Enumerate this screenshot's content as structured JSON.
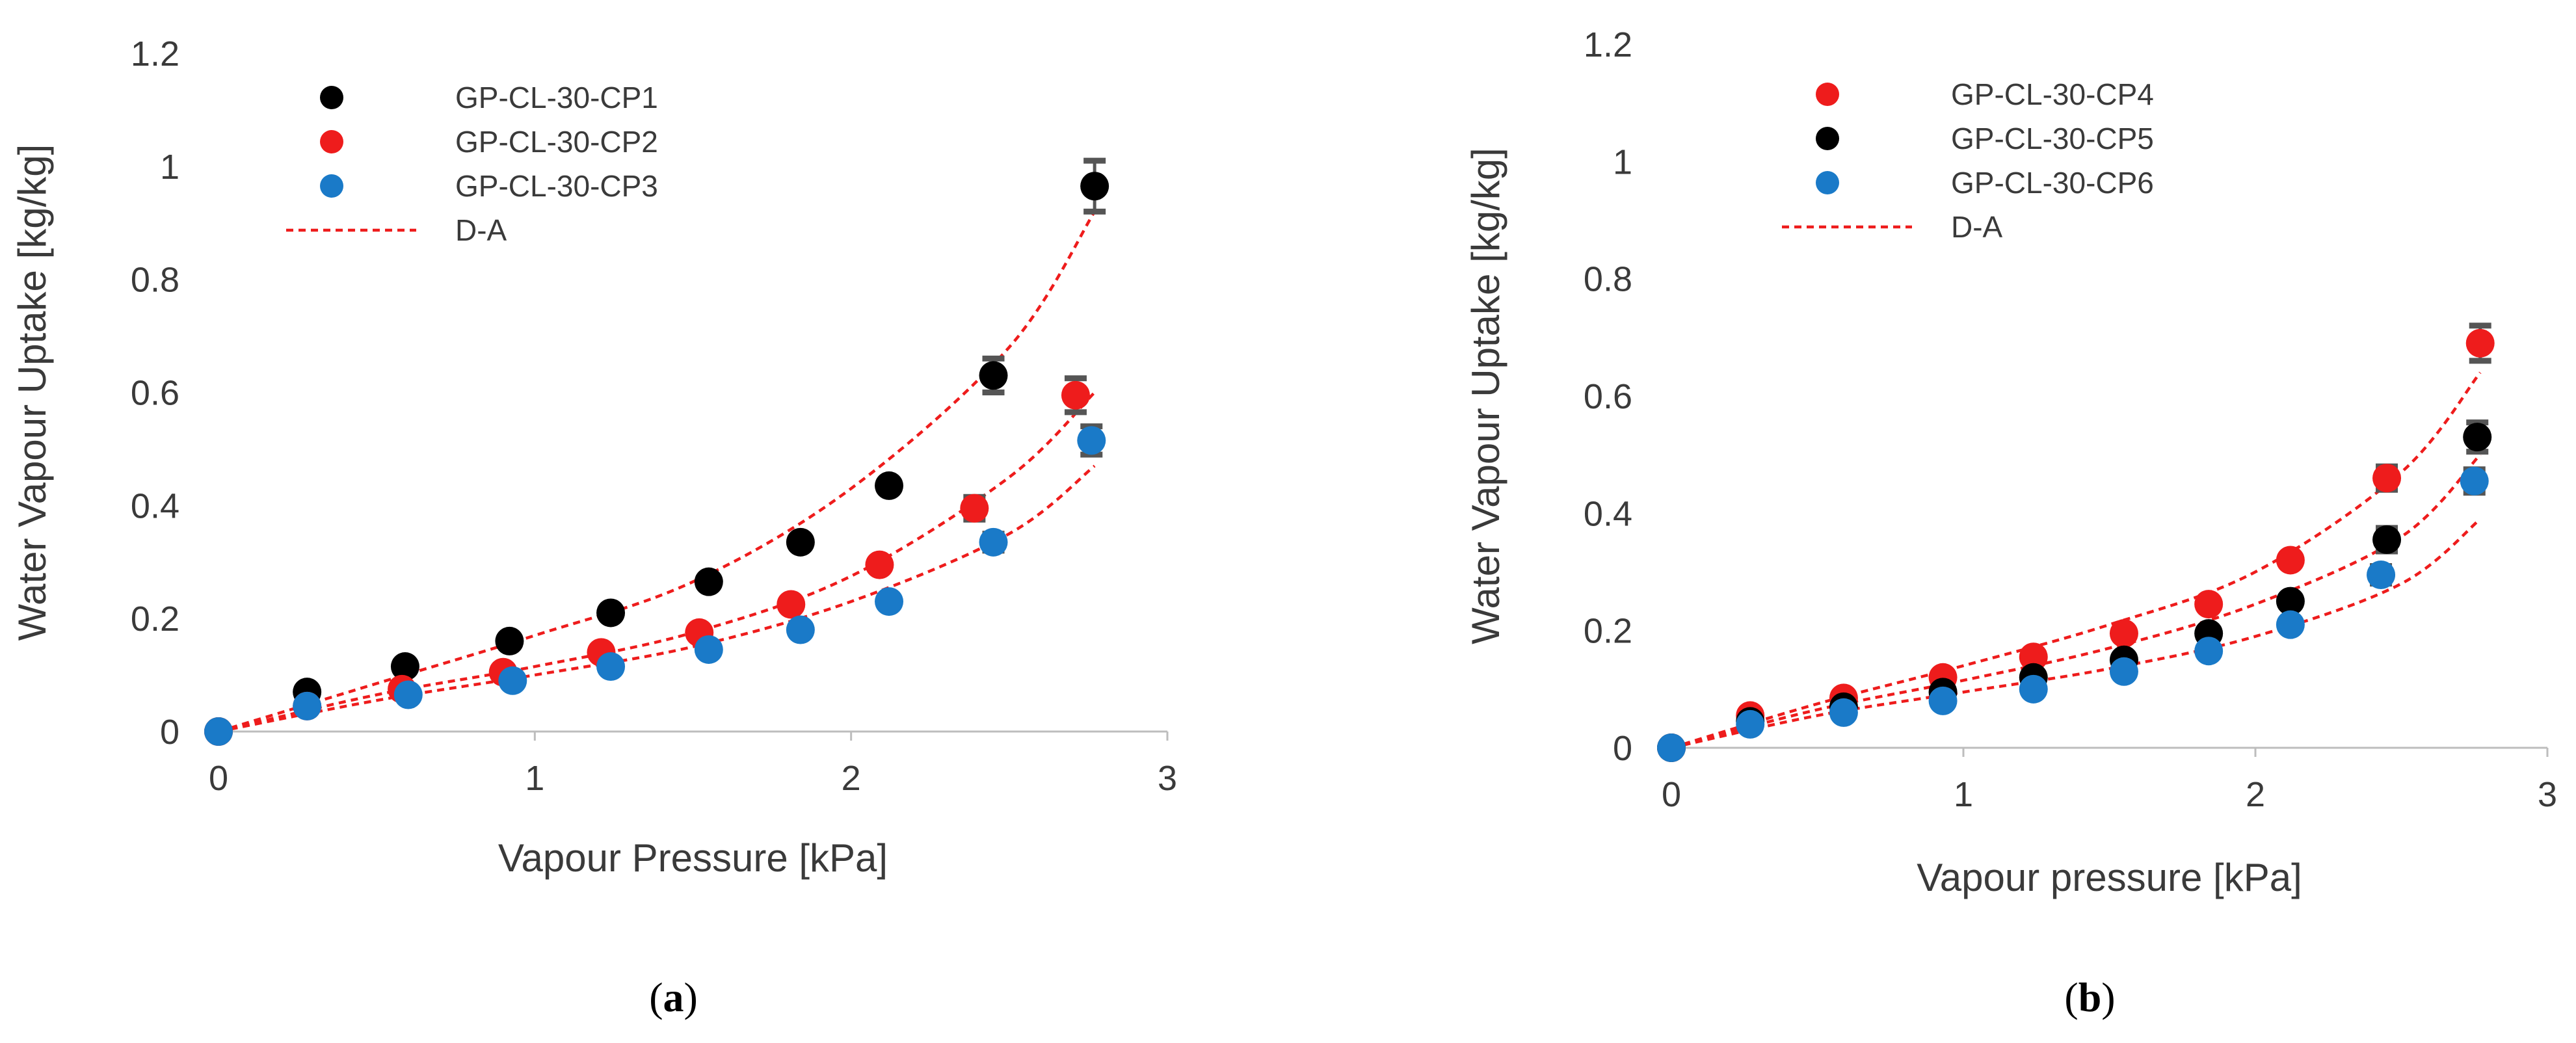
{
  "chart_data": [
    {
      "type": "scatter",
      "panel_label": "a",
      "caption_open": "(",
      "caption_close": ")",
      "xlabel": "Vapour Pressure [kPa]",
      "ylabel": "Water Vapour Uptake [kg/kg]",
      "xlim": [
        0,
        3
      ],
      "ylim": [
        0,
        1.2
      ],
      "xticks": [
        0,
        1,
        2,
        3
      ],
      "xtick_labels": [
        "0",
        "1",
        "2",
        "3"
      ],
      "yticks": [
        0,
        0.2,
        0.4,
        0.6,
        0.8,
        1.0,
        1.2
      ],
      "ytick_labels": [
        "0",
        "0.2",
        "0.4",
        "0.6",
        "0.8",
        "1",
        "1.2"
      ],
      "legend_position": "top-left",
      "series": [
        {
          "name": "GP-CL-30-CP1",
          "color": "#000000",
          "kind": "points",
          "x": [
            0,
            0.28,
            0.59,
            0.92,
            1.24,
            1.55,
            1.84,
            2.12,
            2.45,
            2.77
          ],
          "y": [
            0,
            0.07,
            0.115,
            0.16,
            0.21,
            0.265,
            0.335,
            0.435,
            0.63,
            0.965
          ],
          "err": [
            0,
            0,
            0,
            0,
            0,
            0,
            0,
            0,
            0.03,
            0.045
          ]
        },
        {
          "name": "GP-CL-30-CP2",
          "color": "#ee1c1c",
          "kind": "points",
          "x": [
            0,
            0.28,
            0.58,
            0.9,
            1.21,
            1.52,
            1.81,
            2.09,
            2.39,
            2.71
          ],
          "y": [
            0,
            0.045,
            0.075,
            0.105,
            0.14,
            0.175,
            0.225,
            0.295,
            0.395,
            0.595
          ],
          "err": [
            0,
            0,
            0,
            0,
            0,
            0,
            0,
            0,
            0.02,
            0.03
          ]
        },
        {
          "name": "GP-CL-30-CP3",
          "color": "#1a7ac8",
          "kind": "points",
          "x": [
            0,
            0.28,
            0.6,
            0.93,
            1.24,
            1.55,
            1.84,
            2.12,
            2.45,
            2.76
          ],
          "y": [
            0,
            0.045,
            0.065,
            0.09,
            0.115,
            0.145,
            0.18,
            0.23,
            0.335,
            0.515
          ],
          "err": [
            0,
            0,
            0,
            0,
            0,
            0,
            0,
            0,
            0.015,
            0.025
          ]
        }
      ],
      "fits": {
        "name": "D-A",
        "color": "#ee1c1c",
        "curves": [
          {
            "x": [
              0,
              0.5,
              1.0,
              1.5,
              2.0,
              2.5,
              2.77
            ],
            "y": [
              0,
              0.085,
              0.17,
              0.265,
              0.43,
              0.68,
              0.92
            ]
          },
          {
            "x": [
              0,
              0.5,
              1.0,
              1.5,
              2.0,
              2.5,
              2.77
            ],
            "y": [
              0,
              0.065,
              0.115,
              0.175,
              0.275,
              0.45,
              0.6
            ]
          },
          {
            "x": [
              0,
              0.5,
              1.0,
              1.5,
              2.0,
              2.5,
              2.77
            ],
            "y": [
              0,
              0.055,
              0.1,
              0.15,
              0.23,
              0.35,
              0.47
            ]
          }
        ]
      }
    },
    {
      "type": "scatter",
      "panel_label": "b",
      "caption_open": "(",
      "caption_close": ")",
      "xlabel": "Vapour pressure [kPa]",
      "ylabel": "Water Vapour Uptake [kg/kg]",
      "xlim": [
        0,
        3
      ],
      "ylim": [
        0,
        1.2
      ],
      "xticks": [
        0,
        1,
        2,
        3
      ],
      "xtick_labels": [
        "0",
        "1",
        "2",
        "3"
      ],
      "yticks": [
        0,
        0.2,
        0.4,
        0.6,
        0.8,
        1.0,
        1.2
      ],
      "ytick_labels": [
        "0",
        "0.2",
        "0.4",
        "0.6",
        "0.8",
        "1",
        "1.2"
      ],
      "legend_position": "top-left",
      "series": [
        {
          "name": "GP-CL-30-CP4",
          "color": "#ee1c1c",
          "kind": "points",
          "x": [
            0,
            0.27,
            0.59,
            0.93,
            1.24,
            1.55,
            1.84,
            2.12,
            2.45,
            2.77
          ],
          "y": [
            0,
            0.055,
            0.085,
            0.12,
            0.155,
            0.195,
            0.245,
            0.32,
            0.46,
            0.69
          ],
          "err": [
            0,
            0,
            0,
            0,
            0,
            0,
            0,
            0,
            0.02,
            0.03
          ]
        },
        {
          "name": "GP-CL-30-CP5",
          "color": "#000000",
          "kind": "points",
          "x": [
            0,
            0.27,
            0.59,
            0.93,
            1.24,
            1.55,
            1.84,
            2.12,
            2.45,
            2.76
          ],
          "y": [
            0,
            0.045,
            0.07,
            0.095,
            0.12,
            0.15,
            0.195,
            0.25,
            0.355,
            0.53
          ],
          "err": [
            0,
            0,
            0,
            0,
            0,
            0,
            0,
            0,
            0.02,
            0.025
          ]
        },
        {
          "name": "GP-CL-30-CP6",
          "color": "#1a7ac8",
          "kind": "points",
          "x": [
            0,
            0.27,
            0.59,
            0.93,
            1.24,
            1.55,
            1.84,
            2.12,
            2.43,
            2.75
          ],
          "y": [
            0,
            0.04,
            0.06,
            0.08,
            0.1,
            0.13,
            0.165,
            0.21,
            0.295,
            0.455
          ],
          "err": [
            0,
            0,
            0,
            0,
            0,
            0,
            0,
            0,
            0.015,
            0.02
          ]
        }
      ],
      "fits": {
        "name": "D-A",
        "color": "#ee1c1c",
        "curves": [
          {
            "x": [
              0,
              0.5,
              1.0,
              1.5,
              2.0,
              2.5,
              2.77
            ],
            "y": [
              0,
              0.075,
              0.14,
              0.21,
              0.3,
              0.47,
              0.64
            ]
          },
          {
            "x": [
              0,
              0.5,
              1.0,
              1.5,
              2.0,
              2.5,
              2.77
            ],
            "y": [
              0,
              0.065,
              0.115,
              0.17,
              0.245,
              0.36,
              0.5
            ]
          },
          {
            "x": [
              0,
              0.5,
              1.0,
              1.5,
              2.0,
              2.5,
              2.77
            ],
            "y": [
              0,
              0.055,
              0.095,
              0.135,
              0.19,
              0.28,
              0.39
            ]
          }
        ]
      }
    }
  ]
}
